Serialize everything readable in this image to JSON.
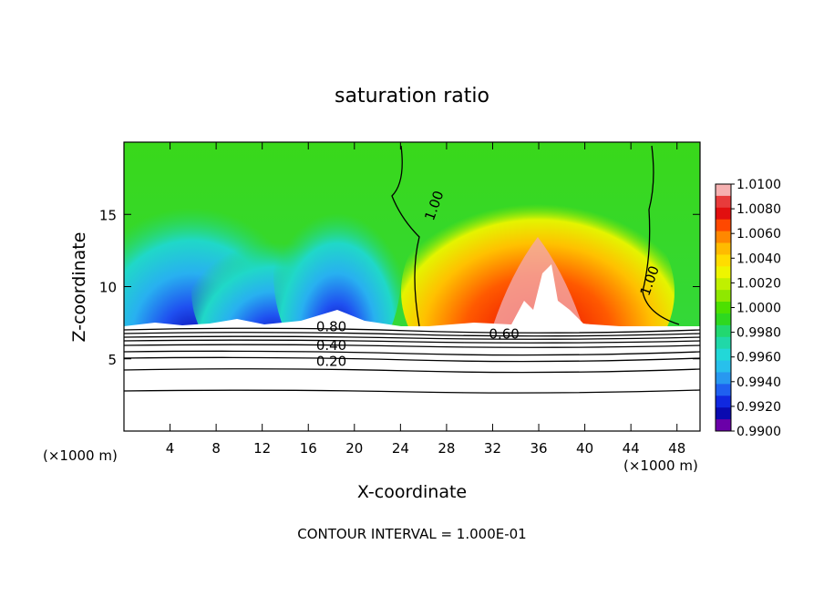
{
  "chart_data": {
    "type": "heatmap",
    "title": "saturation ratio",
    "xlabel": "X-coordinate",
    "ylabel": "Z-coordinate",
    "x_unit": "(×1000 m)",
    "x_unit_right": "(×1000 m)",
    "footer": "CONTOUR INTERVAL = 1.000E-01",
    "xlim": [
      0,
      50
    ],
    "ylim": [
      0,
      20
    ],
    "x_ticks": [
      4,
      8,
      12,
      16,
      20,
      24,
      28,
      32,
      36,
      40,
      44,
      48
    ],
    "y_ticks": [
      5,
      10,
      15
    ],
    "colorbar": {
      "min": 0.99,
      "max": 1.01,
      "labels": [
        "1.0100",
        "1.0080",
        "1.0060",
        "1.0040",
        "1.0020",
        "1.0000",
        "0.9980",
        "0.9960",
        "0.9940",
        "0.9920",
        "0.9900"
      ],
      "colors": [
        "#f6b1b1",
        "#e83b3b",
        "#e20f0f",
        "#ff4800",
        "#ff8800",
        "#ffbb00",
        "#ffdd00",
        "#eef500",
        "#c0f000",
        "#8fe800",
        "#4ce000",
        "#2ed820",
        "#22d870",
        "#20d8a8",
        "#22d8d8",
        "#28c0ec",
        "#2898f0",
        "#1f60f0",
        "#1028e0",
        "#0a0ab0",
        "#6a00a8"
      ]
    },
    "contour_labels": [
      {
        "text": "0.80",
        "x": 18,
        "z": 6.9
      },
      {
        "text": "0.40",
        "x": 18,
        "z": 5.6
      },
      {
        "text": "0.20",
        "x": 18,
        "z": 4.5
      },
      {
        "text": "0.60",
        "x": 33,
        "z": 6.4
      },
      {
        "text": "1.00",
        "x": 27.3,
        "z": 15.5
      },
      {
        "text": "1.00",
        "x": 46,
        "z": 10.3
      }
    ]
  }
}
